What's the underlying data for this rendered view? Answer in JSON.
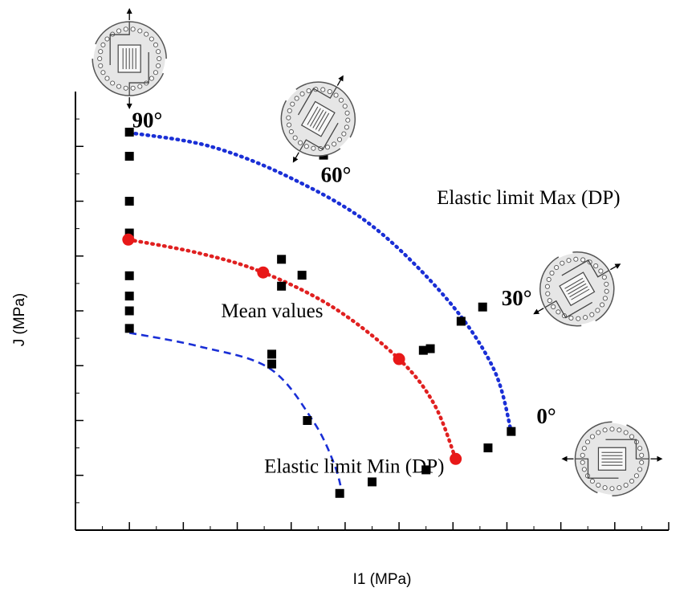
{
  "chart_data": {
    "type": "scatter",
    "xlabel": "I1 (MPa)",
    "ylabel": "J (MPa)",
    "xlim": [
      0,
      11
    ],
    "ylim": [
      0,
      8
    ],
    "x_ticks_labeled": false,
    "y_ticks_labeled": false,
    "grid": false,
    "measured_points": [
      [
        1.0,
        7.26
      ],
      [
        1.0,
        6.82
      ],
      [
        1.0,
        6.0
      ],
      [
        1.0,
        5.42
      ],
      [
        1.0,
        4.64
      ],
      [
        1.0,
        4.27
      ],
      [
        1.0,
        4.0
      ],
      [
        1.0,
        3.68
      ],
      [
        3.64,
        3.21
      ],
      [
        3.64,
        3.03
      ],
      [
        4.2,
        4.65
      ],
      [
        4.5,
        7.0
      ],
      [
        4.6,
        6.84
      ],
      [
        4.6,
        6.95
      ],
      [
        3.82,
        4.45
      ],
      [
        3.82,
        4.94
      ],
      [
        4.3,
        2.0
      ],
      [
        4.9,
        0.67
      ],
      [
        5.5,
        0.88
      ],
      [
        6.45,
        3.28
      ],
      [
        6.58,
        3.31
      ],
      [
        6.5,
        1.1
      ],
      [
        7.15,
        3.81
      ],
      [
        7.55,
        4.07
      ],
      [
        7.65,
        1.5
      ],
      [
        8.08,
        1.8
      ]
    ],
    "mean_points": [
      [
        0.98,
        5.3
      ],
      [
        3.48,
        4.7
      ],
      [
        6.0,
        3.12
      ],
      [
        7.05,
        1.3
      ]
    ],
    "curves": [
      {
        "name": "Elastic limit Max (DP)",
        "color": "#1a2fd6",
        "style": "dotted",
        "points": [
          [
            1.0,
            7.25
          ],
          [
            2.5,
            7.0
          ],
          [
            4.0,
            6.42
          ],
          [
            5.5,
            5.55
          ],
          [
            6.9,
            4.2
          ],
          [
            7.75,
            2.95
          ],
          [
            8.08,
            1.8
          ]
        ]
      },
      {
        "name": "Mean values",
        "color": "#e02020",
        "style": "dotted",
        "points": [
          [
            0.98,
            5.3
          ],
          [
            2.3,
            5.05
          ],
          [
            3.48,
            4.7
          ],
          [
            4.8,
            4.05
          ],
          [
            6.0,
            3.12
          ],
          [
            6.65,
            2.3
          ],
          [
            7.05,
            1.3
          ]
        ]
      },
      {
        "name": "Elastic limit Min (DP)",
        "color": "#1a2fd6",
        "style": "dashed",
        "points": [
          [
            1.0,
            3.6
          ],
          [
            2.3,
            3.35
          ],
          [
            3.6,
            2.95
          ],
          [
            4.4,
            2.0
          ],
          [
            4.8,
            1.2
          ],
          [
            4.95,
            0.65
          ]
        ]
      }
    ],
    "annotations": [
      {
        "text": "90°",
        "x": 1.05,
        "y": 7.35
      },
      {
        "text": "60°",
        "x": 4.55,
        "y": 6.35
      },
      {
        "text": "30°",
        "x": 7.9,
        "y": 4.1
      },
      {
        "text": "0°",
        "x": 8.55,
        "y": 1.95
      },
      {
        "text": "Elastic limit Max (DP)",
        "x": 6.7,
        "y": 5.95
      },
      {
        "text": "Mean values",
        "x": 2.7,
        "y": 3.88
      },
      {
        "text": "Elastic limit Min (DP)",
        "x": 3.5,
        "y": 1.05
      }
    ],
    "specimen_icons": [
      {
        "orientation": "90°",
        "rotation": 0,
        "x": 1.0,
        "y": 8.6
      },
      {
        "orientation": "60°",
        "rotation": 30,
        "x": 4.5,
        "y": 7.5
      },
      {
        "orientation": "30°",
        "rotation": 60,
        "x": 9.3,
        "y": 4.4
      },
      {
        "orientation": "0°",
        "rotation": 90,
        "x": 9.95,
        "y": 1.3
      }
    ]
  }
}
